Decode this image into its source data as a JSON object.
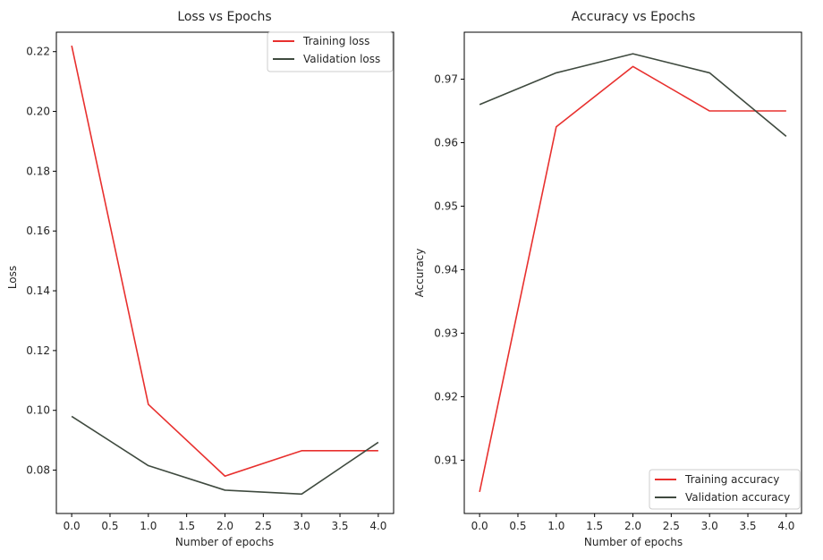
{
  "colors": {
    "training": "#e8302e",
    "validation": "#3f4a3f",
    "axis": "#000000",
    "text": "#262626"
  },
  "chart_data": [
    {
      "type": "line",
      "title": "Loss vs Epochs",
      "xlabel": "Number of epochs",
      "ylabel": "Loss",
      "x": [
        0,
        1,
        2,
        3,
        4
      ],
      "xlim": [
        -0.2,
        4.2
      ],
      "ylim": [
        0.0655,
        0.2265
      ],
      "xticks": [
        0.0,
        0.5,
        1.0,
        1.5,
        2.0,
        2.5,
        3.0,
        3.5,
        4.0
      ],
      "xtick_labels": [
        "0.0",
        "0.5",
        "1.0",
        "1.5",
        "2.0",
        "2.5",
        "3.0",
        "3.5",
        "4.0"
      ],
      "yticks": [
        0.08,
        0.1,
        0.12,
        0.14,
        0.16,
        0.18,
        0.2,
        0.22
      ],
      "ytick_labels": [
        "0.08",
        "0.10",
        "0.12",
        "0.14",
        "0.16",
        "0.18",
        "0.20",
        "0.22"
      ],
      "legend_position": "top-right",
      "grid": false,
      "series": [
        {
          "name": "Training loss",
          "color_key": "training",
          "values": [
            0.222,
            0.102,
            0.078,
            0.0865,
            0.0865
          ]
        },
        {
          "name": "Validation loss",
          "color_key": "validation",
          "values": [
            0.098,
            0.0815,
            0.0733,
            0.072,
            0.0893
          ]
        }
      ]
    },
    {
      "type": "line",
      "title": "Accuracy vs Epochs",
      "xlabel": "Number of epochs",
      "ylabel": "Accuracy",
      "x": [
        0,
        1,
        2,
        3,
        4
      ],
      "xlim": [
        -0.2,
        4.2
      ],
      "ylim": [
        0.9016,
        0.9774
      ],
      "xticks": [
        0.0,
        0.5,
        1.0,
        1.5,
        2.0,
        2.5,
        3.0,
        3.5,
        4.0
      ],
      "xtick_labels": [
        "0.0",
        "0.5",
        "1.0",
        "1.5",
        "2.0",
        "2.5",
        "3.0",
        "3.5",
        "4.0"
      ],
      "yticks": [
        0.91,
        0.92,
        0.93,
        0.94,
        0.95,
        0.96,
        0.97
      ],
      "ytick_labels": [
        "0.91",
        "0.92",
        "0.93",
        "0.94",
        "0.95",
        "0.96",
        "0.97"
      ],
      "legend_position": "bottom-right",
      "grid": false,
      "series": [
        {
          "name": "Training accuracy",
          "color_key": "training",
          "values": [
            0.905,
            0.9625,
            0.972,
            0.965,
            0.965
          ]
        },
        {
          "name": "Validation accuracy",
          "color_key": "validation",
          "values": [
            0.966,
            0.971,
            0.974,
            0.971,
            0.961
          ]
        }
      ]
    }
  ]
}
